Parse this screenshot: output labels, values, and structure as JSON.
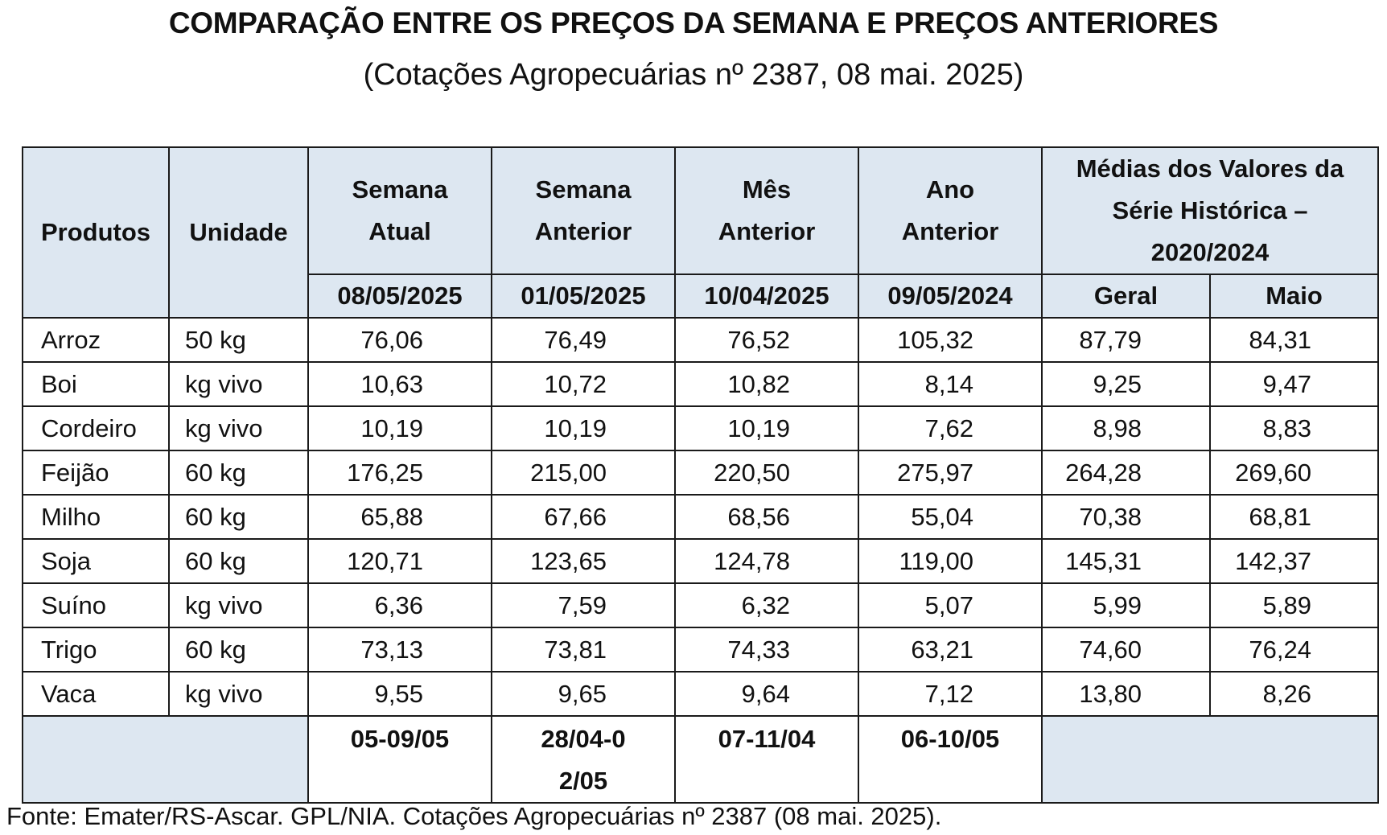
{
  "title": "COMPARAÇÃO ENTRE OS PREÇOS DA SEMANA E PREÇOS ANTERIORES",
  "subtitle": "(Cotações Agropecuárias nº 2387, 08 mai. 2025)",
  "table": {
    "headers": {
      "produtos": "Produtos",
      "unidade": "Unidade",
      "semana_atual": "Semana Atual",
      "semana_anterior": "Semana Anterior",
      "mes_anterior": "Mês Anterior",
      "ano_anterior": "Ano Anterior",
      "medias": "Médias dos Valores da Série Histórica – 2020/2024"
    },
    "dates": {
      "semana_atual": "08/05/2025",
      "semana_anterior": "01/05/2025",
      "mes_anterior": "10/04/2025",
      "ano_anterior": "09/05/2024",
      "geral": "Geral",
      "maio": "Maio"
    },
    "rows": [
      {
        "produto": "Arroz",
        "unidade": "50 kg",
        "semana_atual": "76,06",
        "semana_anterior": "76,49",
        "mes_anterior": "76,52",
        "ano_anterior": "105,32",
        "geral": "87,79",
        "maio": "84,31"
      },
      {
        "produto": "Boi",
        "unidade": "kg vivo",
        "semana_atual": "10,63",
        "semana_anterior": "10,72",
        "mes_anterior": "10,82",
        "ano_anterior": "8,14",
        "geral": "9,25",
        "maio": "9,47"
      },
      {
        "produto": "Cordeiro",
        "unidade": "kg vivo",
        "semana_atual": "10,19",
        "semana_anterior": "10,19",
        "mes_anterior": "10,19",
        "ano_anterior": "7,62",
        "geral": "8,98",
        "maio": "8,83"
      },
      {
        "produto": "Feijão",
        "unidade": "60 kg",
        "semana_atual": "176,25",
        "semana_anterior": "215,00",
        "mes_anterior": "220,50",
        "ano_anterior": "275,97",
        "geral": "264,28",
        "maio": "269,60"
      },
      {
        "produto": "Milho",
        "unidade": "60 kg",
        "semana_atual": "65,88",
        "semana_anterior": "67,66",
        "mes_anterior": "68,56",
        "ano_anterior": "55,04",
        "geral": "70,38",
        "maio": "68,81"
      },
      {
        "produto": "Soja",
        "unidade": "60 kg",
        "semana_atual": "120,71",
        "semana_anterior": "123,65",
        "mes_anterior": "124,78",
        "ano_anterior": "119,00",
        "geral": "145,31",
        "maio": "142,37"
      },
      {
        "produto": "Suíno",
        "unidade": "kg vivo",
        "semana_atual": "6,36",
        "semana_anterior": "7,59",
        "mes_anterior": "6,32",
        "ano_anterior": "5,07",
        "geral": "5,99",
        "maio": "5,89"
      },
      {
        "produto": "Trigo",
        "unidade": "60 kg",
        "semana_atual": "73,13",
        "semana_anterior": "73,81",
        "mes_anterior": "74,33",
        "ano_anterior": "63,21",
        "geral": "74,60",
        "maio": "76,24"
      },
      {
        "produto": "Vaca",
        "unidade": "kg vivo",
        "semana_atual": "9,55",
        "semana_anterior": "9,65",
        "mes_anterior": "9,64",
        "ano_anterior": "7,12",
        "geral": "13,80",
        "maio": "8,26"
      }
    ],
    "footer_periods": {
      "semana_atual": "05-09/05",
      "semana_anterior": "28/04-02/05",
      "mes_anterior": "07-11/04",
      "ano_anterior": "06-10/05"
    }
  },
  "source": "Fonte: Emater/RS-Ascar. GPL/NIA. Cotações Agropecuárias nº 2387 (08 mai. 2025)."
}
